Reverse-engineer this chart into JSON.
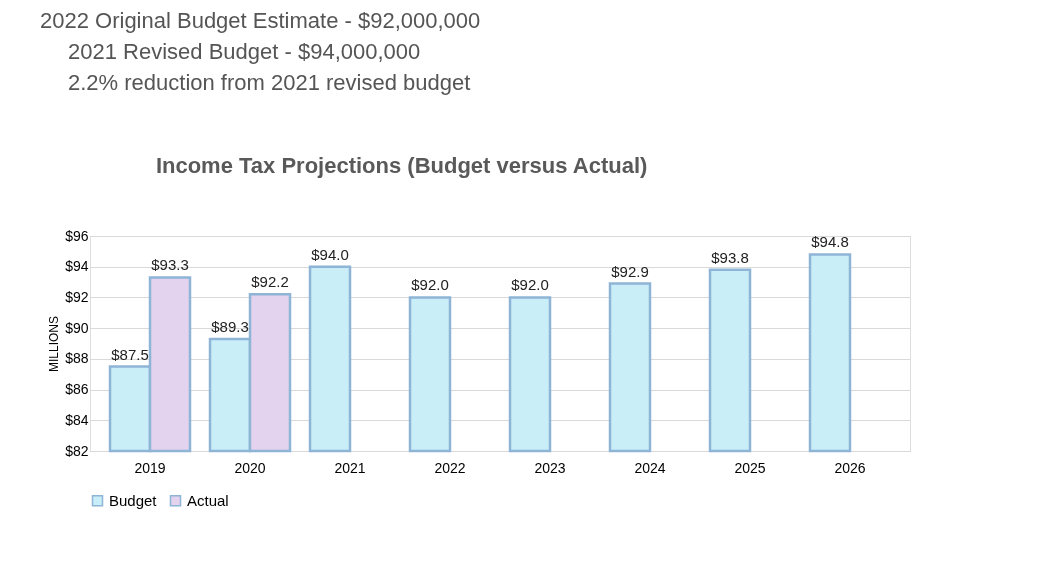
{
  "chart_data": {
    "type": "bar",
    "title": "Income Tax Projections (Budget versus Actual)",
    "ylabel": "MILLIONS",
    "annotations": [
      "2022 Original Budget Estimate - $92,000,000",
      "2021 Revised Budget - $94,000,000",
      "2.2% reduction from 2021 revised budget"
    ],
    "categories": [
      "2019",
      "2020",
      "2021",
      "2022",
      "2023",
      "2024",
      "2025",
      "2026"
    ],
    "series": [
      {
        "name": "Budget",
        "color": "#c9eef8",
        "values": [
          87.5,
          89.3,
          94.0,
          92.0,
          92.0,
          92.9,
          93.8,
          94.8
        ],
        "value_labels": [
          "$87.5",
          "$89.3",
          "$94.0",
          "$92.0",
          "$92.0",
          "$92.9",
          "$93.8",
          "$94.8"
        ]
      },
      {
        "name": "Actual",
        "color": "#e3d3ee",
        "values": [
          93.3,
          92.2,
          null,
          null,
          null,
          null,
          null,
          null
        ],
        "value_labels": [
          "$93.3",
          "$92.2",
          null,
          null,
          null,
          null,
          null,
          null
        ]
      }
    ],
    "ylim": [
      82,
      96
    ],
    "yticks": [
      {
        "value": 82,
        "label": "$82"
      },
      {
        "value": 84,
        "label": "$84"
      },
      {
        "value": 86,
        "label": "$86"
      },
      {
        "value": 88,
        "label": "$88"
      },
      {
        "value": 90,
        "label": "$90"
      },
      {
        "value": 92,
        "label": "$92"
      },
      {
        "value": 94,
        "label": "$94"
      },
      {
        "value": 96,
        "label": "$96"
      }
    ],
    "grid": "y",
    "legend": "bottom"
  }
}
